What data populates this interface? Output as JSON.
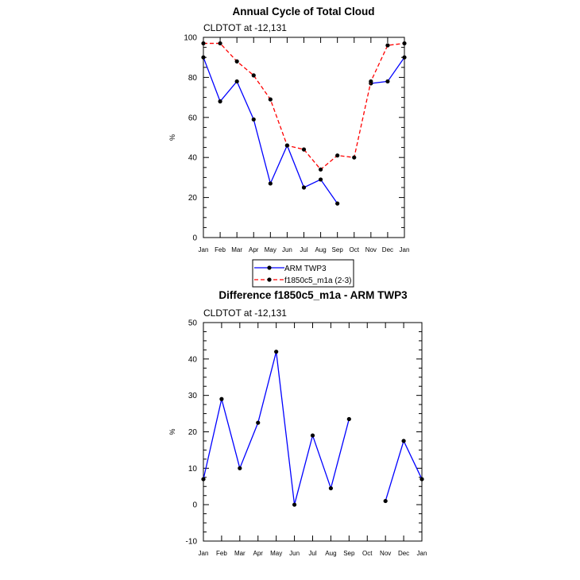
{
  "chart_data": [
    {
      "type": "line",
      "title": "Annual Cycle of Total Cloud",
      "subtitle": "CLDTOT at -12,131",
      "xlabel": "",
      "ylabel": "%",
      "categories": [
        "Jan",
        "Feb",
        "Mar",
        "Apr",
        "May",
        "Jun",
        "Jul",
        "Aug",
        "Sep",
        "Oct",
        "Nov",
        "Dec",
        "Jan"
      ],
      "ylim": [
        0,
        100
      ],
      "yticks": [
        0,
        20,
        40,
        60,
        80,
        100
      ],
      "series": [
        {
          "name": "ARM TWP3",
          "color": "#0000ff",
          "dash": "solid",
          "values": [
            90,
            68,
            78,
            59,
            27,
            46,
            25,
            29,
            17,
            null,
            77,
            78,
            90
          ]
        },
        {
          "name": "f1850c5_m1a (2-3)",
          "color": "#ff0000",
          "dash": "dashed",
          "values": [
            97,
            97,
            88,
            81,
            69,
            46,
            44,
            34,
            41,
            40,
            78,
            96,
            97
          ]
        }
      ],
      "legend": "below"
    },
    {
      "type": "line",
      "title": "Difference f1850c5_m1a - ARM TWP3",
      "subtitle": "CLDTOT at -12,131",
      "xlabel": "",
      "ylabel": "%",
      "categories": [
        "Jan",
        "Feb",
        "Mar",
        "Apr",
        "May",
        "Jun",
        "Jul",
        "Aug",
        "Sep",
        "Oct",
        "Nov",
        "Dec",
        "Jan"
      ],
      "ylim": [
        -10,
        50
      ],
      "yticks": [
        -10,
        0,
        10,
        20,
        30,
        40,
        50
      ],
      "series": [
        {
          "color": "#0000ff",
          "dash": "solid",
          "values": [
            7,
            29,
            10,
            22.5,
            42,
            0,
            19,
            4.5,
            23.5,
            null,
            1,
            17.5,
            7
          ]
        }
      ]
    }
  ]
}
